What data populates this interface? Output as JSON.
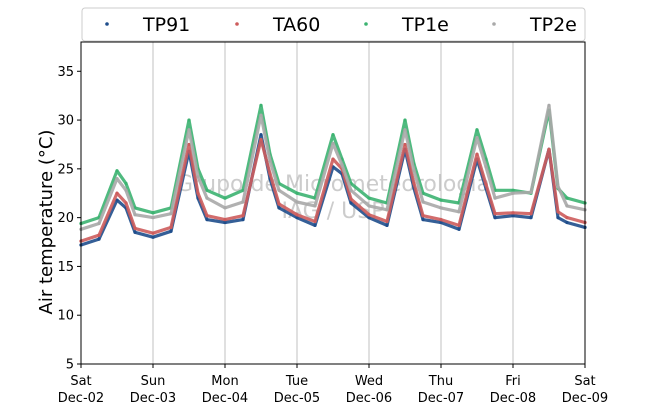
{
  "chart_data": {
    "type": "line",
    "title": "",
    "xlabel": "",
    "ylabel": "Air temperature (°C)",
    "ylim": [
      5,
      38
    ],
    "yticks": [
      5,
      10,
      15,
      20,
      25,
      30,
      35
    ],
    "xlim": [
      "2023-12-02",
      "2023-12-09"
    ],
    "xticks": [
      {
        "day": "Sat",
        "date": "Dec-02"
      },
      {
        "day": "Sun",
        "date": "Dec-03"
      },
      {
        "day": "Mon",
        "date": "Dec-04"
      },
      {
        "day": "Tue",
        "date": "Dec-05"
      },
      {
        "day": "Wed",
        "date": "Dec-06"
      },
      {
        "day": "Thu",
        "date": "Dec-07"
      },
      {
        "day": "Fri",
        "date": "Dec-08"
      },
      {
        "day": "Sat",
        "date": "Dec-09"
      }
    ],
    "grid": "vertical",
    "legend_position": "top",
    "watermark": [
      "Grupo de Micrometeorologia",
      "IAG / USP"
    ],
    "series": [
      {
        "name": "TP91",
        "color": "#1f4e8c",
        "x": [
          "2023-12-02 00:00",
          "2023-12-02 06:00",
          "2023-12-02 12:00",
          "2023-12-02 15:00",
          "2023-12-02 18:00",
          "2023-12-03 00:00",
          "2023-12-03 06:00",
          "2023-12-03 12:00",
          "2023-12-03 15:00",
          "2023-12-03 18:00",
          "2023-12-04 00:00",
          "2023-12-04 06:00",
          "2023-12-04 12:00",
          "2023-12-04 15:00",
          "2023-12-04 18:00",
          "2023-12-05 00:00",
          "2023-12-05 06:00",
          "2023-12-05 12:00",
          "2023-12-05 15:00",
          "2023-12-05 18:00",
          "2023-12-06 00:00",
          "2023-12-06 06:00",
          "2023-12-06 12:00",
          "2023-12-06 15:00",
          "2023-12-06 18:00",
          "2023-12-07 00:00",
          "2023-12-07 06:00",
          "2023-12-07 12:00",
          "2023-12-07 15:00",
          "2023-12-07 18:00",
          "2023-12-08 00:00",
          "2023-12-08 06:00",
          "2023-12-08 12:00",
          "2023-12-08 15:00",
          "2023-12-08 18:00",
          "2023-12-09 00:00"
        ],
        "y": [
          17.2,
          17.8,
          21.8,
          21.0,
          18.5,
          18.0,
          18.6,
          26.8,
          22.0,
          19.8,
          19.5,
          19.8,
          28.5,
          24.0,
          21.0,
          20.0,
          19.2,
          25.2,
          24.5,
          21.5,
          20.0,
          19.2,
          27.0,
          23.0,
          19.8,
          19.5,
          18.8,
          26.0,
          23.0,
          20.0,
          20.2,
          20.0,
          27.0,
          20.0,
          19.5,
          19.0
        ]
      },
      {
        "name": "TA60",
        "color": "#cd5c5c",
        "x": [
          "2023-12-02 00:00",
          "2023-12-02 06:00",
          "2023-12-02 12:00",
          "2023-12-02 15:00",
          "2023-12-02 18:00",
          "2023-12-03 00:00",
          "2023-12-03 06:00",
          "2023-12-03 12:00",
          "2023-12-03 15:00",
          "2023-12-03 18:00",
          "2023-12-04 00:00",
          "2023-12-04 06:00",
          "2023-12-04 12:00",
          "2023-12-04 15:00",
          "2023-12-04 18:00",
          "2023-12-05 00:00",
          "2023-12-05 06:00",
          "2023-12-05 12:00",
          "2023-12-05 15:00",
          "2023-12-05 18:00",
          "2023-12-06 00:00",
          "2023-12-06 06:00",
          "2023-12-06 12:00",
          "2023-12-06 15:00",
          "2023-12-06 18:00",
          "2023-12-07 00:00",
          "2023-12-07 06:00",
          "2023-12-07 12:00",
          "2023-12-07 15:00",
          "2023-12-07 18:00",
          "2023-12-08 00:00",
          "2023-12-08 06:00",
          "2023-12-08 12:00",
          "2023-12-08 15:00",
          "2023-12-08 18:00",
          "2023-12-09 00:00"
        ],
        "y": [
          17.6,
          18.2,
          22.5,
          21.5,
          18.9,
          18.4,
          19.0,
          27.5,
          22.5,
          20.2,
          19.8,
          20.2,
          28.0,
          24.5,
          21.4,
          20.3,
          19.6,
          26.0,
          25.0,
          21.9,
          20.3,
          19.6,
          27.5,
          23.5,
          20.2,
          19.8,
          19.2,
          26.5,
          23.4,
          20.4,
          20.5,
          20.4,
          27.0,
          20.6,
          20.0,
          19.5
        ]
      },
      {
        "name": "TP1e",
        "color": "#3cb371",
        "x": [
          "2023-12-02 00:00",
          "2023-12-02 06:00",
          "2023-12-02 12:00",
          "2023-12-02 15:00",
          "2023-12-02 18:00",
          "2023-12-03 00:00",
          "2023-12-03 06:00",
          "2023-12-03 12:00",
          "2023-12-03 15:00",
          "2023-12-03 18:00",
          "2023-12-04 00:00",
          "2023-12-04 06:00",
          "2023-12-04 12:00",
          "2023-12-04 15:00",
          "2023-12-04 18:00",
          "2023-12-05 00:00",
          "2023-12-05 06:00",
          "2023-12-05 12:00",
          "2023-12-05 15:00",
          "2023-12-05 18:00",
          "2023-12-06 00:00",
          "2023-12-06 06:00",
          "2023-12-06 12:00",
          "2023-12-06 15:00",
          "2023-12-06 18:00",
          "2023-12-07 00:00",
          "2023-12-07 06:00",
          "2023-12-07 12:00",
          "2023-12-07 15:00",
          "2023-12-07 18:00",
          "2023-12-08 00:00",
          "2023-12-08 06:00",
          "2023-12-08 12:00",
          "2023-12-08 15:00",
          "2023-12-08 18:00",
          "2023-12-09 00:00"
        ],
        "y": [
          19.4,
          20.0,
          24.8,
          23.5,
          21.0,
          20.5,
          21.0,
          30.0,
          25.0,
          22.8,
          22.0,
          22.8,
          31.5,
          26.5,
          23.5,
          22.5,
          22.0,
          28.5,
          26.0,
          23.5,
          22.0,
          21.5,
          30.0,
          25.5,
          22.5,
          21.8,
          21.5,
          29.0,
          26.0,
          22.8,
          22.8,
          22.5,
          31.0,
          23.0,
          22.0,
          21.5
        ]
      },
      {
        "name": "TP2e",
        "color": "#a9a9a9",
        "x": [
          "2023-12-02 00:00",
          "2023-12-02 06:00",
          "2023-12-02 12:00",
          "2023-12-02 15:00",
          "2023-12-02 18:00",
          "2023-12-03 00:00",
          "2023-12-03 06:00",
          "2023-12-03 12:00",
          "2023-12-03 15:00",
          "2023-12-03 18:00",
          "2023-12-04 00:00",
          "2023-12-04 06:00",
          "2023-12-04 12:00",
          "2023-12-04 15:00",
          "2023-12-04 18:00",
          "2023-12-05 00:00",
          "2023-12-05 06:00",
          "2023-12-05 12:00",
          "2023-12-05 15:00",
          "2023-12-05 18:00",
          "2023-12-06 00:00",
          "2023-12-06 06:00",
          "2023-12-06 12:00",
          "2023-12-06 15:00",
          "2023-12-06 18:00",
          "2023-12-07 00:00",
          "2023-12-07 06:00",
          "2023-12-07 12:00",
          "2023-12-07 15:00",
          "2023-12-07 18:00",
          "2023-12-08 00:00",
          "2023-12-08 06:00",
          "2023-12-08 12:00",
          "2023-12-08 15:00",
          "2023-12-08 18:00",
          "2023-12-09 00:00"
        ],
        "y": [
          18.8,
          19.4,
          24.0,
          22.8,
          20.3,
          20.0,
          20.4,
          29.0,
          24.2,
          22.0,
          21.0,
          21.6,
          30.5,
          25.8,
          22.8,
          21.6,
          21.2,
          27.6,
          25.4,
          22.8,
          21.2,
          20.8,
          29.0,
          24.8,
          21.6,
          21.0,
          20.6,
          28.2,
          25.2,
          22.0,
          22.5,
          22.6,
          31.5,
          23.2,
          21.2,
          20.8
        ]
      }
    ]
  }
}
